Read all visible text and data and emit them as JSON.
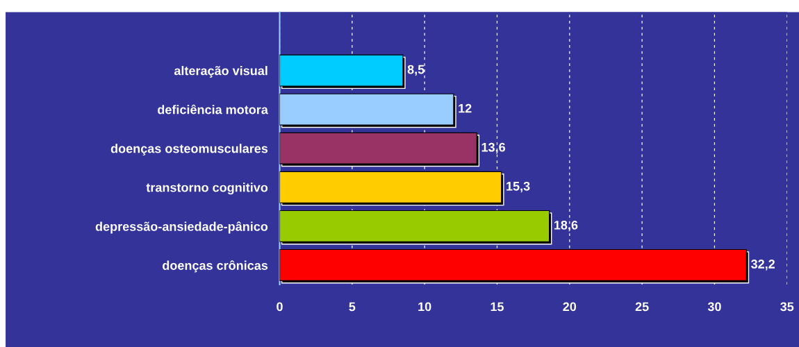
{
  "chart_data": {
    "type": "bar",
    "orientation": "horizontal",
    "categories": [
      null,
      "alteração visual",
      "deficiência motora",
      "doenças osteomusculares",
      "transtorno cognitivo",
      "depressão-ansiedade-pânico",
      "doenças crônicas"
    ],
    "values": [
      null,
      8.5,
      12,
      13.6,
      15.3,
      18.6,
      32.2
    ],
    "colors": [
      "#333399",
      "#00ccff",
      "#99ccff",
      "#993366",
      "#ffcc00",
      "#99cc00",
      "#ff0000"
    ],
    "value_labels": [
      null,
      "8,5",
      "12",
      "13,6",
      "15,3",
      "18,6",
      "32,2"
    ],
    "xlim": [
      0,
      35
    ],
    "xticks": [
      0,
      5,
      10,
      15,
      20,
      25,
      30,
      35
    ],
    "grid": "x",
    "legend": false
  }
}
